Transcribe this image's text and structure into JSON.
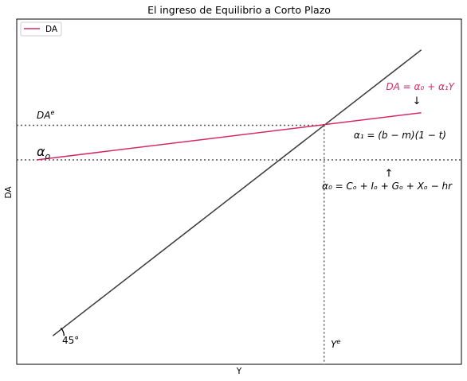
{
  "chart_data": {
    "type": "line",
    "title": "El ingreso de Equilibrio a Corto Plazo",
    "xlabel": "Y",
    "ylabel": "DA",
    "xlim": [
      0,
      10
    ],
    "ylim": [
      0,
      10
    ],
    "grid": false,
    "legend_placement": "top-left",
    "series": [
      {
        "name": "DA",
        "color": "#d62967",
        "x": [
          0,
          9.5
        ],
        "y": [
          6.0,
          7.5
        ]
      },
      {
        "name": "",
        "color": "#3b3b3b",
        "x": [
          0.4,
          9.5
        ],
        "y": [
          0.4,
          9.5
        ]
      }
    ],
    "reference_lines": {
      "intercept_y": 6.0,
      "equilibrium_y": 7.1,
      "equilibrium_x": 7.1,
      "color": "#555555"
    },
    "annotations": {
      "alpha_o": "α",
      "alpha_o_sub": "o",
      "da_e": "DA",
      "da_e_sup": "e",
      "y_e": "Y",
      "y_e_sup": "e",
      "angle": "45°",
      "da_equation": "DA = α₀ + α₁Y",
      "arrow_down": "↓",
      "alpha1_equation": "α₁ = (b − m)(1 − t)",
      "arrow_up": "↑",
      "alpha0_equation": "α₀ = Cₒ + Iₒ + Gₒ + Xₒ − hr"
    }
  }
}
